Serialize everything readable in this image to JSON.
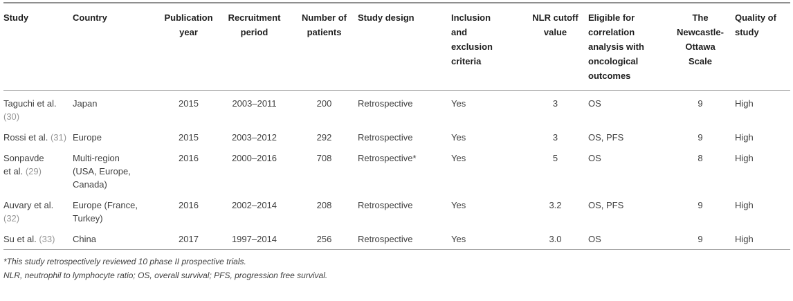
{
  "colors": {
    "body_text": "#404040",
    "header_text": "#1f1f1f",
    "citation_gray": "#969696",
    "rule_gray": "#a3a3a3"
  },
  "table": {
    "columns": [
      {
        "key": "study",
        "label": "Study",
        "align": "left"
      },
      {
        "key": "country",
        "label": "Country",
        "align": "left"
      },
      {
        "key": "pub",
        "label": "Publication\nyear",
        "align": "center"
      },
      {
        "key": "recruit",
        "label": "Recruitment\nperiod",
        "align": "center"
      },
      {
        "key": "patients",
        "label": "Number of\npatients",
        "align": "center"
      },
      {
        "key": "design",
        "label": "Study design",
        "align": "left"
      },
      {
        "key": "criteria",
        "label": "Inclusion\nand\nexclusion\ncriteria",
        "align": "left"
      },
      {
        "key": "nlr",
        "label": "NLR cutoff\nvalue",
        "align": "center"
      },
      {
        "key": "eligible",
        "label": "Eligible for\ncorrelation\nanalysis with\noncological\noutcomes",
        "align": "left"
      },
      {
        "key": "nos",
        "label": "The\nNewcastle-\nOttawa\nScale",
        "align": "center"
      },
      {
        "key": "quality",
        "label": "Quality of\nstudy",
        "align": "left"
      }
    ],
    "rows": [
      {
        "study": "Taguchi et al.",
        "ref": "(30)",
        "country": "Japan",
        "pub": "2015",
        "recruit": "2003–2011",
        "patients": "200",
        "design": "Retrospective",
        "criteria": "Yes",
        "nlr": "3",
        "eligible": "OS",
        "nos": "9",
        "quality": "High"
      },
      {
        "study": "Rossi et al.",
        "ref": "(31)",
        "country": "Europe",
        "pub": "2015",
        "recruit": "2003–2012",
        "patients": "292",
        "design": "Retrospective",
        "criteria": "Yes",
        "nlr": "3",
        "eligible": "OS, PFS",
        "nos": "9",
        "quality": "High"
      },
      {
        "study": "Sonpavde\net al.",
        "ref": "(29)",
        "country": "Multi-region (USA, Europe, Canada)",
        "pub": "2016",
        "recruit": "2000–2016",
        "patients": "708",
        "design": "Retrospective*",
        "criteria": "Yes",
        "nlr": "5",
        "eligible": "OS",
        "nos": "8",
        "quality": "High"
      },
      {
        "study": "Auvary et al.",
        "ref": "(32)",
        "country": "Europe (France, Turkey)",
        "pub": "2016",
        "recruit": "2002–2014",
        "patients": "208",
        "design": "Retrospective",
        "criteria": "Yes",
        "nlr": "3.2",
        "eligible": "OS, PFS",
        "nos": "9",
        "quality": "High"
      },
      {
        "study": "Su et al.",
        "ref": "(33)",
        "country": "China",
        "pub": "2017",
        "recruit": "1997–2014",
        "patients": "256",
        "design": "Retrospective",
        "criteria": "Yes",
        "nlr": "3.0",
        "eligible": "OS",
        "nos": "9",
        "quality": "High"
      }
    ]
  },
  "footnotes": [
    "*This study retrospectively reviewed 10 phase II prospective trials.",
    "NLR, neutrophil to lymphocyte ratio; OS, overall survival; PFS, progression free survival."
  ]
}
